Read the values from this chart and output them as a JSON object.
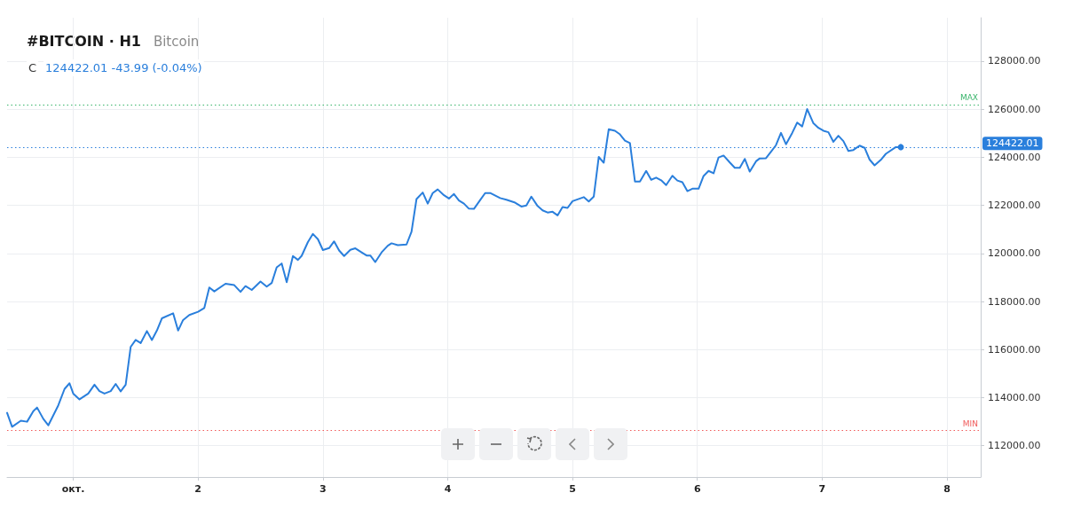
{
  "chart_data": {
    "type": "line",
    "title": "#BITCOIN · H1",
    "subtitle": "Bitcoin",
    "annotations": [
      "C 124422.01 -43.99 (-0.04%)"
    ],
    "x": [
      0.47,
      0.51,
      0.58,
      0.63,
      0.68,
      0.71,
      0.76,
      0.8,
      0.88,
      0.93,
      0.97,
      1.0,
      1.05,
      1.12,
      1.17,
      1.21,
      1.25,
      1.3,
      1.34,
      1.38,
      1.42,
      1.46,
      1.5,
      1.54,
      1.59,
      1.63,
      1.67,
      1.71,
      1.8,
      1.84,
      1.88,
      1.93,
      2.0,
      2.05,
      2.09,
      2.13,
      2.22,
      2.29,
      2.34,
      2.38,
      2.43,
      2.5,
      2.55,
      2.59,
      2.63,
      2.67,
      2.71,
      2.76,
      2.8,
      2.83,
      2.88,
      2.92,
      2.96,
      3.0,
      3.05,
      3.09,
      3.13,
      3.17,
      3.22,
      3.26,
      3.31,
      3.35,
      3.38,
      3.42,
      3.47,
      3.52,
      3.55,
      3.6,
      3.67,
      3.71,
      3.75,
      3.8,
      3.84,
      3.88,
      3.92,
      3.97,
      4.01,
      4.05,
      4.09,
      4.13,
      4.17,
      4.21,
      4.26,
      4.3,
      4.34,
      4.42,
      4.47,
      4.54,
      4.59,
      4.63,
      4.67,
      4.72,
      4.76,
      4.8,
      4.84,
      4.88,
      4.92,
      4.96,
      5.0,
      5.09,
      5.13,
      5.17,
      5.21,
      5.25,
      5.29,
      5.34,
      5.38,
      5.42,
      5.46,
      5.5,
      5.54,
      5.59,
      5.63,
      5.67,
      5.71,
      5.75,
      5.8,
      5.84,
      5.88,
      5.92,
      5.96,
      6.01,
      6.05,
      6.09,
      6.13,
      6.17,
      6.21,
      6.26,
      6.3,
      6.34,
      6.38,
      6.42,
      6.47,
      6.5,
      6.55,
      6.59,
      6.63,
      6.67,
      6.71,
      6.76,
      6.8,
      6.84,
      6.88,
      6.93,
      6.97,
      7.01,
      7.05,
      7.09,
      7.13,
      7.17,
      7.21,
      7.25,
      7.3,
      7.34,
      7.38,
      7.42,
      7.47,
      7.51,
      7.59,
      7.63
    ],
    "series": [
      {
        "color": "#2a7fdc",
        "values": [
          113370,
          112790,
          113040,
          113000,
          113440,
          113590,
          113120,
          112850,
          113680,
          114360,
          114600,
          114170,
          113930,
          114170,
          114540,
          114270,
          114170,
          114270,
          114570,
          114260,
          114540,
          116110,
          116400,
          116270,
          116770,
          116400,
          116790,
          117300,
          117510,
          116790,
          117230,
          117440,
          117570,
          117730,
          118580,
          118420,
          118740,
          118680,
          118400,
          118640,
          118480,
          118830,
          118620,
          118770,
          119420,
          119580,
          118800,
          119890,
          119730,
          119900,
          120470,
          120810,
          120590,
          120140,
          120220,
          120500,
          120120,
          119890,
          120150,
          120210,
          120040,
          119910,
          119910,
          119640,
          120040,
          120320,
          120420,
          120340,
          120370,
          120900,
          122260,
          122530,
          122070,
          122510,
          122660,
          122420,
          122280,
          122470,
          122200,
          122070,
          121860,
          121850,
          122220,
          122510,
          122510,
          122300,
          122230,
          122110,
          121950,
          121990,
          122360,
          121970,
          121790,
          121700,
          121730,
          121580,
          121930,
          121890,
          122170,
          122340,
          122160,
          122360,
          124010,
          123770,
          125160,
          125100,
          124950,
          124690,
          124590,
          122990,
          122990,
          123430,
          123060,
          123150,
          123040,
          122840,
          123230,
          123030,
          122960,
          122590,
          122690,
          122690,
          123220,
          123430,
          123330,
          123990,
          124070,
          123780,
          123560,
          123560,
          123930,
          123400,
          123830,
          123950,
          123960,
          124230,
          124500,
          125010,
          124540,
          125010,
          125440,
          125280,
          126000,
          125410,
          125220,
          125100,
          125040,
          124640,
          124890,
          124670,
          124260,
          124300,
          124480,
          124390,
          123900,
          123660,
          123890,
          124140,
          124420,
          124420
        ]
      }
    ],
    "xlim": [
      0.47,
      8.27
    ],
    "xticks": [
      {
        "value": 1,
        "label": "окт."
      },
      2,
      3,
      4,
      5,
      6,
      7,
      8
    ],
    "ylim": [
      110700,
      129800
    ],
    "yticks": [
      {
        "value": 112000,
        "label": "112000.00"
      },
      {
        "value": 114000,
        "label": "114000.00"
      },
      {
        "value": 116000,
        "label": "116000.00"
      },
      {
        "value": 118000,
        "label": "118000.00"
      },
      {
        "value": 120000,
        "label": "120000.00"
      },
      {
        "value": 122000,
        "label": "122000.00"
      },
      {
        "value": 124000,
        "label": "124000.00"
      },
      {
        "value": 126000,
        "label": "126000.00"
      },
      {
        "value": 128000,
        "label": "128000.00"
      }
    ],
    "ref_lines": [
      {
        "axis": "y",
        "value": 126190,
        "label": "MAX",
        "color": "#3bb56c",
        "line_style": "dotted"
      },
      {
        "axis": "y",
        "value": 112630,
        "label": "MIN",
        "color": "#f05a5a",
        "line_style": "dotted"
      },
      {
        "axis": "y",
        "value": 124422.01,
        "label": "124422.01",
        "color": "#2a7fdc",
        "line_style": "dotted"
      }
    ],
    "grid": true,
    "line_style": "solid"
  }
}
